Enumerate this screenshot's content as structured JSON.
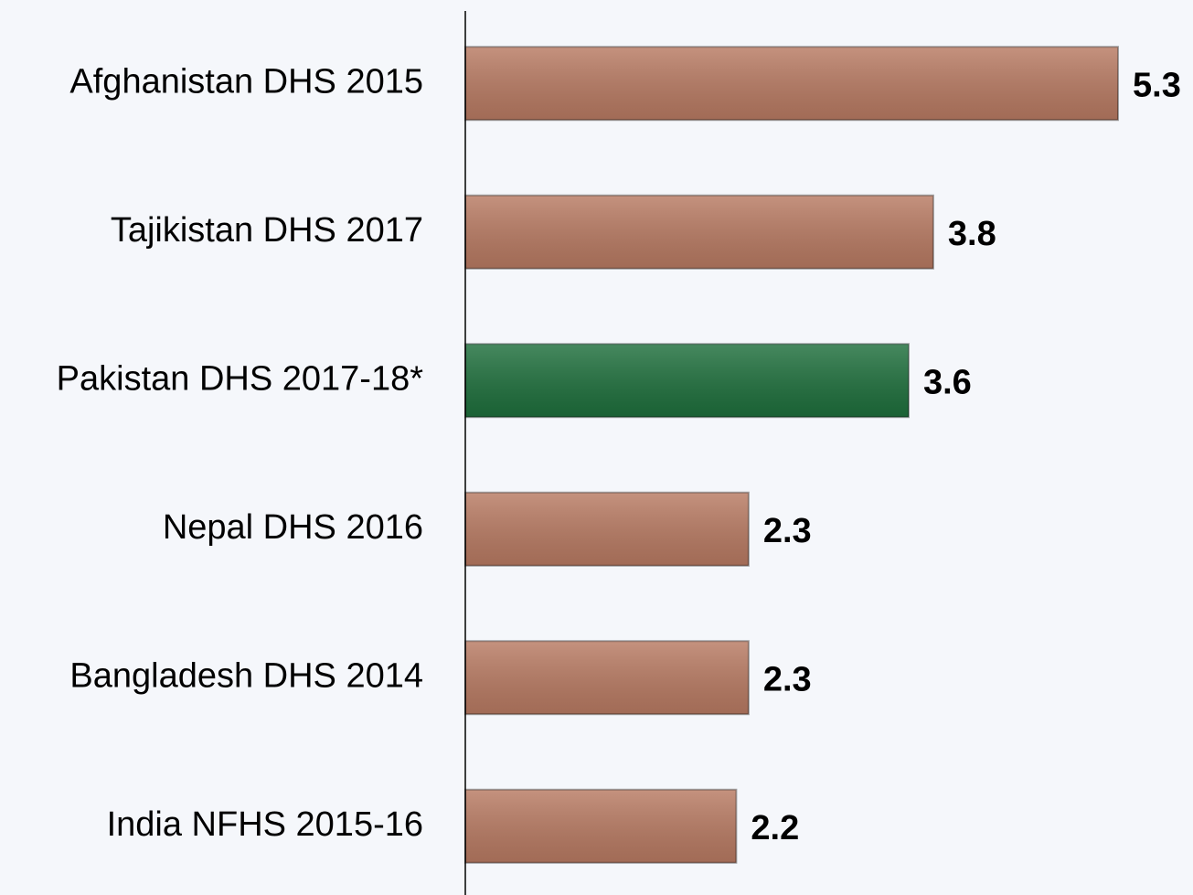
{
  "chart_data": {
    "type": "barh",
    "categories": [
      "Afghanistan DHS 2015",
      "Tajikistan DHS 2017",
      "Pakistan DHS 2017-18*",
      "Nepal DHS 2016",
      "Bangladesh DHS 2014",
      "India NFHS 2015-16"
    ],
    "values": [
      5.3,
      3.8,
      3.6,
      2.3,
      2.3,
      2.2
    ],
    "colors": [
      "#b87a62",
      "#b87a62",
      "#1e6f3c",
      "#b87a62",
      "#b87a62",
      "#b87a62"
    ],
    "xlim": [
      0,
      5.3
    ]
  }
}
